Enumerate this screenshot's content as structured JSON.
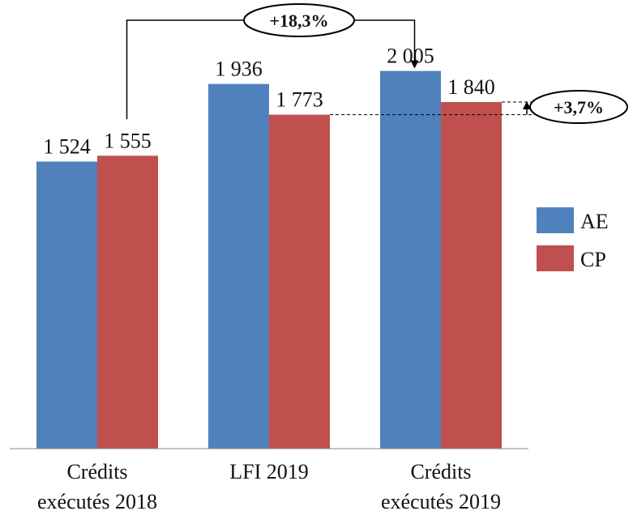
{
  "chart_data": {
    "type": "bar",
    "title": "",
    "xlabel": "",
    "ylabel": "",
    "ylim": [
      0,
      2200
    ],
    "grid": false,
    "legend_position": "right",
    "categories": [
      [
        "Crédits",
        "exécutés 2018"
      ],
      [
        "LFI 2019"
      ],
      [
        "Crédits",
        "exécutés 2019"
      ]
    ],
    "series": [
      {
        "name": "AE",
        "color": "#4F81BD",
        "values": [
          1524,
          1936,
          2005
        ],
        "labels": [
          "1 524",
          "1 936",
          "2 005"
        ]
      },
      {
        "name": "CP",
        "color": "#C0504D",
        "values": [
          1555,
          1773,
          1840
        ],
        "labels": [
          "1 555",
          "1 773",
          "1 840"
        ]
      }
    ],
    "annotations": [
      {
        "text": "+18,3%",
        "from": {
          "series": 1,
          "category": 0
        },
        "to": {
          "series": 0,
          "category": 2
        }
      },
      {
        "text": "+3,7%",
        "from": {
          "series": 1,
          "category": 1
        },
        "to": {
          "series": 1,
          "category": 2
        }
      }
    ]
  }
}
